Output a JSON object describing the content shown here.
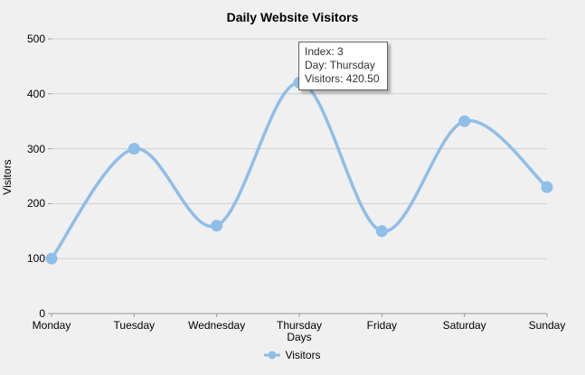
{
  "title": "Daily Website Visitors",
  "chart_data": {
    "type": "line",
    "smooth": true,
    "categories": [
      "Monday",
      "Tuesday",
      "Wednesday",
      "Thursday",
      "Friday",
      "Saturday",
      "Sunday"
    ],
    "series": [
      {
        "name": "Visitors",
        "values": [
          100,
          300,
          160,
          420.5,
          150,
          350,
          230
        ],
        "color": "#8fbee8"
      }
    ],
    "title": "Daily Website Visitors",
    "xlabel": "Days",
    "ylabel": "Visitors",
    "ylim": [
      0,
      500
    ],
    "ytick_interval": 100,
    "grid": "horizontal",
    "legend_position": "bottom"
  },
  "tooltip": {
    "lines": [
      "Index: 3",
      "Day: Thursday",
      "Visitors: 420.50"
    ]
  },
  "colors": {
    "background": "#f0f0f0",
    "gridline": "#d0d0d0",
    "axis": "#9a9a9a",
    "series": "#8fbee8",
    "tooltip_border": "#646464",
    "tooltip_bg": "#ffffff"
  }
}
